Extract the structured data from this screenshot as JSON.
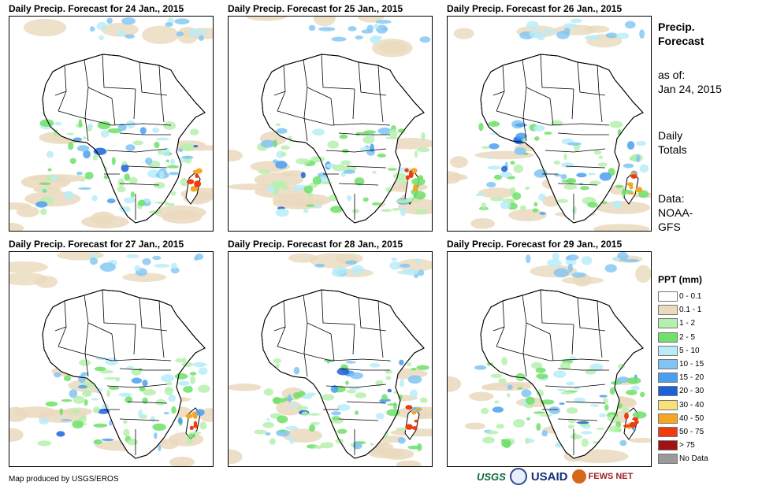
{
  "panels": [
    {
      "title": "Daily Precip. Forecast for 24 Jan., 2015"
    },
    {
      "title": "Daily Precip. Forecast for 25 Jan., 2015"
    },
    {
      "title": "Daily Precip. Forecast for 26 Jan., 2015"
    },
    {
      "title": "Daily Precip. Forecast for 27 Jan., 2015"
    },
    {
      "title": "Daily Precip. Forecast for 28 Jan., 2015"
    },
    {
      "title": "Daily Precip. Forecast for 29 Jan., 2015"
    }
  ],
  "side": {
    "title_line1": "Precip.",
    "title_line2": "Forecast",
    "asof_label": "as of:",
    "asof_date": "Jan 24, 2015",
    "totals_line1": "Daily",
    "totals_line2": "Totals",
    "data_line1": "Data:",
    "data_line2": "NOAA-",
    "data_line3": "GFS"
  },
  "legend": {
    "title": "PPT (mm)",
    "items": [
      {
        "label": "0 - 0.1",
        "color": "#ffffff"
      },
      {
        "label": "0.1 - 1",
        "color": "#ead9bd"
      },
      {
        "label": "1 - 2",
        "color": "#b6f0ae"
      },
      {
        "label": "2 - 5",
        "color": "#6fe06a"
      },
      {
        "label": "5 - 10",
        "color": "#b8ecf8"
      },
      {
        "label": "10 - 15",
        "color": "#7fc4f4"
      },
      {
        "label": "15 - 20",
        "color": "#4a9ff0"
      },
      {
        "label": "20 - 30",
        "color": "#1b62d8"
      },
      {
        "label": "30 - 40",
        "color": "#f7e27a"
      },
      {
        "label": "40 - 50",
        "color": "#f5a623"
      },
      {
        "label": "50 - 75",
        "color": "#f03a10"
      },
      {
        "label": "> 75",
        "color": "#a01212"
      },
      {
        "label": "No Data",
        "color": "#9a9a9a"
      }
    ]
  },
  "footer": {
    "credit": "Map produced by USGS/EROS",
    "logo_usgs": "USGS",
    "logo_usaid": "USAID",
    "logo_fews": "FEWS NET"
  }
}
